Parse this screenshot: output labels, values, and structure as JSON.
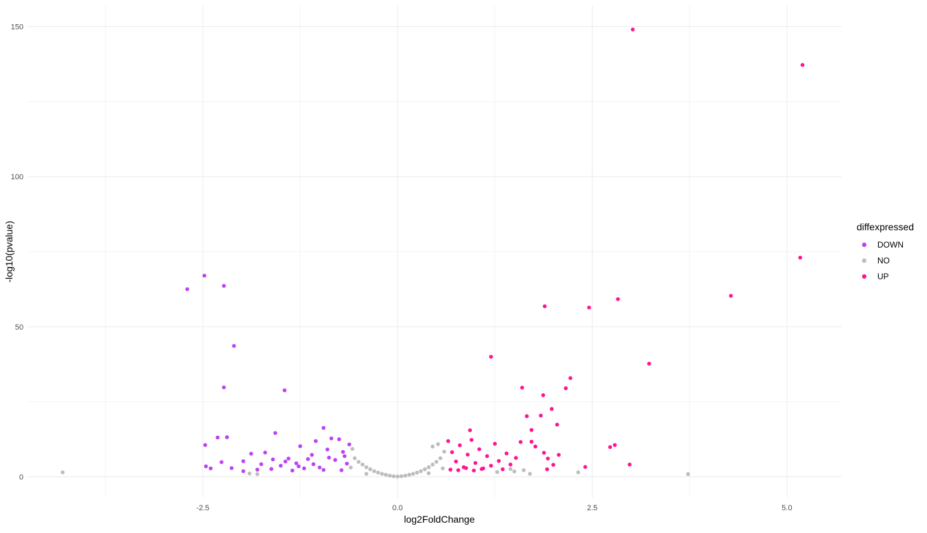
{
  "chart_data": {
    "type": "scatter",
    "title": "",
    "xlabel": "log2FoldChange",
    "ylabel": "-log10(pvalue)",
    "xlim": [
      -4.75,
      5.7
    ],
    "ylim": [
      -7,
      157
    ],
    "x_ticks": [
      -2.5,
      0.0,
      2.5,
      5.0
    ],
    "x_tick_labels": [
      "-2.5",
      "0.0",
      "2.5",
      "5.0"
    ],
    "y_ticks": [
      0,
      50,
      100,
      150
    ],
    "y_tick_labels": [
      "0",
      "50",
      "100",
      "150"
    ],
    "grid": true,
    "legend": {
      "title": "diffexpressed",
      "placement": "right",
      "entries": [
        {
          "label": "DOWN",
          "color": "#bc42f5"
        },
        {
          "label": "NO",
          "color": "#bdbdbd"
        },
        {
          "label": "UP",
          "color": "#ff1493"
        }
      ]
    },
    "series": [
      {
        "name": "DOWN",
        "color": "#bc42f5",
        "points": [
          [
            -2.7,
            62.5
          ],
          [
            -2.48,
            67
          ],
          [
            -2.23,
            63.6
          ],
          [
            -2.1,
            43.6
          ],
          [
            -2.23,
            29.8
          ],
          [
            -1.45,
            28.8
          ],
          [
            -2.47,
            10.6
          ],
          [
            -2.31,
            13.1
          ],
          [
            -2.19,
            13.2
          ],
          [
            -1.57,
            14.6
          ],
          [
            -0.95,
            16.3
          ],
          [
            -2.46,
            3.5
          ],
          [
            -2.4,
            2.8
          ],
          [
            -2.26,
            4.9
          ],
          [
            -2.13,
            2.9
          ],
          [
            -1.98,
            5.2
          ],
          [
            -1.98,
            1.9
          ],
          [
            -1.88,
            7.7
          ],
          [
            -1.8,
            2.4
          ],
          [
            -1.75,
            4.2
          ],
          [
            -1.7,
            8.1
          ],
          [
            -1.6,
            5.8
          ],
          [
            -1.5,
            3.7
          ],
          [
            -1.4,
            6.1
          ],
          [
            -1.3,
            4.5
          ],
          [
            -1.25,
            10.2
          ],
          [
            -1.2,
            2.8
          ],
          [
            -1.1,
            7.3
          ],
          [
            -1.05,
            11.9
          ],
          [
            -1.0,
            3.1
          ],
          [
            -0.9,
            9.1
          ],
          [
            -0.85,
            12.8
          ],
          [
            -0.8,
            5.6
          ],
          [
            -0.75,
            12.5
          ],
          [
            -0.7,
            8.3
          ],
          [
            -0.65,
            4.4
          ],
          [
            -0.62,
            10.8
          ],
          [
            -1.35,
            2.1
          ],
          [
            -1.15,
            5.9
          ],
          [
            -0.95,
            2.3
          ],
          [
            -0.72,
            2.2
          ],
          [
            -1.62,
            2.6
          ],
          [
            -1.44,
            5.1
          ],
          [
            -1.27,
            3.5
          ],
          [
            -1.08,
            4.2
          ],
          [
            -0.88,
            6.4
          ],
          [
            -0.68,
            6.9
          ]
        ]
      },
      {
        "name": "NO",
        "color": "#bdbdbd",
        "points": [
          [
            -4.3,
            1.5
          ],
          [
            3.73,
            0.9
          ],
          [
            2.32,
            1.5
          ],
          [
            -0.55,
            6.2
          ],
          [
            -0.5,
            5.0
          ],
          [
            -0.45,
            4.1
          ],
          [
            -0.4,
            3.2
          ],
          [
            -0.35,
            2.5
          ],
          [
            -0.3,
            1.9
          ],
          [
            -0.25,
            1.4
          ],
          [
            -0.2,
            1.0
          ],
          [
            -0.15,
            0.7
          ],
          [
            -0.1,
            0.4
          ],
          [
            -0.05,
            0.2
          ],
          [
            0.0,
            0.1
          ],
          [
            0.05,
            0.2
          ],
          [
            0.1,
            0.4
          ],
          [
            0.15,
            0.7
          ],
          [
            0.2,
            1.0
          ],
          [
            0.25,
            1.4
          ],
          [
            0.3,
            1.9
          ],
          [
            0.35,
            2.5
          ],
          [
            0.4,
            3.2
          ],
          [
            0.45,
            4.1
          ],
          [
            0.5,
            5.0
          ],
          [
            0.55,
            6.2
          ],
          [
            0.6,
            8.4
          ],
          [
            0.52,
            10.9
          ],
          [
            0.45,
            10.1
          ],
          [
            -0.58,
            9.3
          ],
          [
            -0.6,
            3.1
          ],
          [
            0.58,
            2.8
          ],
          [
            -0.4,
            1.0
          ],
          [
            0.4,
            1.2
          ],
          [
            1.45,
            2.6
          ],
          [
            1.5,
            1.8
          ],
          [
            1.62,
            2.2
          ],
          [
            1.7,
            1.0
          ],
          [
            1.28,
            1.6
          ],
          [
            -1.9,
            1.1
          ],
          [
            -1.8,
            0.9
          ]
        ]
      },
      {
        "name": "UP",
        "color": "#ff1493",
        "points": [
          [
            3.02,
            149
          ],
          [
            5.2,
            137.2
          ],
          [
            5.17,
            73
          ],
          [
            4.28,
            60.3
          ],
          [
            2.83,
            59.2
          ],
          [
            1.89,
            56.8
          ],
          [
            2.46,
            56.4
          ],
          [
            1.2,
            40
          ],
          [
            3.23,
            37.7
          ],
          [
            2.22,
            32.9
          ],
          [
            1.6,
            29.7
          ],
          [
            2.16,
            29.5
          ],
          [
            1.87,
            27.2
          ],
          [
            1.98,
            22.6
          ],
          [
            1.84,
            20.4
          ],
          [
            1.66,
            20.2
          ],
          [
            2.05,
            17.4
          ],
          [
            1.72,
            15.6
          ],
          [
            0.93,
            15.5
          ],
          [
            1.58,
            11.6
          ],
          [
            1.72,
            11.7
          ],
          [
            2.79,
            10.6
          ],
          [
            2.73,
            9.9
          ],
          [
            1.77,
            10.1
          ],
          [
            1.88,
            8.0
          ],
          [
            2.07,
            7.3
          ],
          [
            1.93,
            6.1
          ],
          [
            2.0,
            4.0
          ],
          [
            1.92,
            2.5
          ],
          [
            2.41,
            3.3
          ],
          [
            2.98,
            4.1
          ],
          [
            0.65,
            11.9
          ],
          [
            0.7,
            8.2
          ],
          [
            0.75,
            5.1
          ],
          [
            0.8,
            10.5
          ],
          [
            0.85,
            3.2
          ],
          [
            0.9,
            7.4
          ],
          [
            0.95,
            12.3
          ],
          [
            1.0,
            4.6
          ],
          [
            1.05,
            9.2
          ],
          [
            1.1,
            2.8
          ],
          [
            1.15,
            6.9
          ],
          [
            1.2,
            3.7
          ],
          [
            1.25,
            11.0
          ],
          [
            1.3,
            5.3
          ],
          [
            1.35,
            2.5
          ],
          [
            1.4,
            7.8
          ],
          [
            1.45,
            4.1
          ],
          [
            1.52,
            6.3
          ],
          [
            0.68,
            2.4
          ],
          [
            0.78,
            2.2
          ],
          [
            0.88,
            2.9
          ],
          [
            0.98,
            2.1
          ],
          [
            1.08,
            2.6
          ]
        ]
      }
    ]
  }
}
